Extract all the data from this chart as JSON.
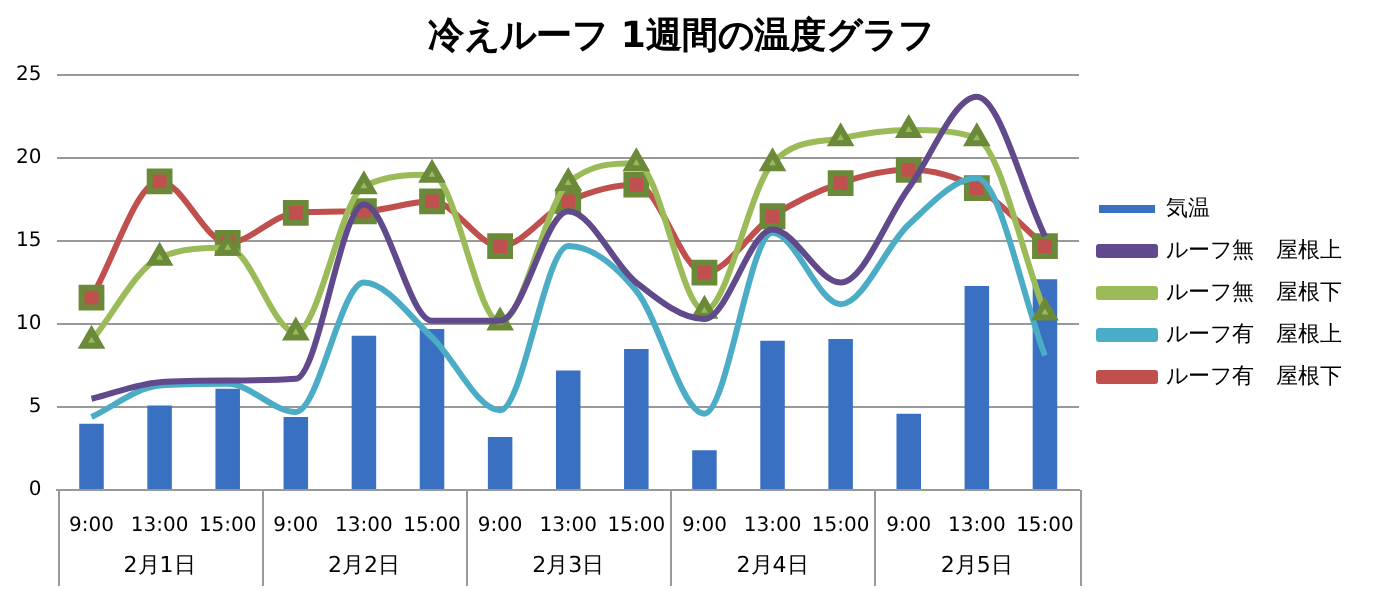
{
  "chart_data": {
    "type": "bar",
    "title": "冷えルーフ 1週間の温度グラフ",
    "categories": [
      "9:00",
      "13:00",
      "15:00",
      "9:00",
      "13:00",
      "15:00",
      "9:00",
      "13:00",
      "15:00",
      "9:00",
      "13:00",
      "15:00",
      "9:00",
      "13:00",
      "15:00"
    ],
    "annotations": [
      "2月1日",
      "2月2日",
      "2月3日",
      "2月4日",
      "2月5日"
    ],
    "series": [
      {
        "name": "気温",
        "color": "#3a70c2",
        "values": [
          4.0,
          5.1,
          6.1,
          4.4,
          9.3,
          9.7,
          3.2,
          7.2,
          8.5,
          2.4,
          9.0,
          9.1,
          4.6,
          12.3,
          12.7
        ]
      },
      {
        "name": "ルーフ無　屋根上",
        "type": "line",
        "color": "#604a8b",
        "marker": "none",
        "values": [
          5.5,
          6.5,
          6.6,
          6.7,
          17.2,
          10.2,
          10.2,
          16.8,
          12.5,
          10.3,
          15.7,
          12.5,
          18.2,
          23.7,
          15.3
        ]
      },
      {
        "name": "ルーフ無　屋根下",
        "type": "line",
        "color": "#9bbb59",
        "marker": "triangle",
        "values": [
          9.0,
          14.0,
          14.6,
          9.5,
          18.3,
          19.0,
          10.1,
          18.5,
          19.7,
          10.8,
          19.7,
          21.2,
          21.7,
          21.2,
          10.7
        ]
      },
      {
        "name": "ルーフ有　屋根上",
        "type": "line",
        "color": "#4bacc6",
        "marker": "none",
        "values": [
          4.4,
          6.3,
          6.4,
          4.7,
          12.5,
          9.2,
          4.8,
          14.7,
          12.0,
          4.6,
          15.5,
          11.2,
          16.0,
          18.8,
          8.1
        ]
      },
      {
        "name": "ルーフ有　屋根下",
        "type": "line",
        "color": "#c0504d",
        "marker": "square",
        "values": [
          11.6,
          18.6,
          14.9,
          16.7,
          16.8,
          17.4,
          14.7,
          17.4,
          18.4,
          13.1,
          16.5,
          18.5,
          19.3,
          18.2,
          14.7
        ]
      }
    ],
    "ylim": [
      0,
      25
    ],
    "yticks": [
      0,
      5,
      10,
      15,
      20,
      25
    ],
    "grid": "y",
    "legend": "right"
  }
}
